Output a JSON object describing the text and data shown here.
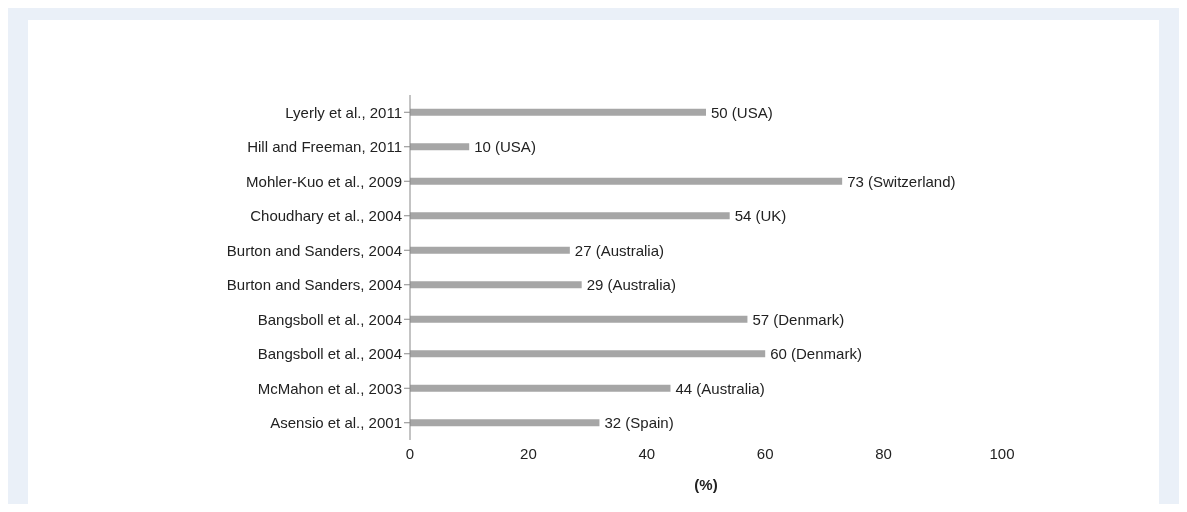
{
  "chart_data": {
    "type": "bar",
    "orientation": "horizontal",
    "xlabel": "(%)",
    "categories": [
      "Lyerly et al., 2011",
      "Hill and Freeman, 2011",
      "Mohler-Kuo et al., 2009",
      "Choudhary et al., 2004",
      "Burton and Sanders, 2004",
      "Burton and Sanders, 2004",
      "Bangsboll et al., 2004",
      "Bangsboll et al., 2004",
      "McMahon et al., 2003",
      "Asensio et al., 2001"
    ],
    "values": [
      50,
      10,
      73,
      54,
      27,
      29,
      57,
      60,
      44,
      32
    ],
    "value_labels": [
      "50 (USA)",
      "10 (USA)",
      "73 (Switzerland)",
      "54 (UK)",
      "27 (Australia)",
      "29 (Australia)",
      "57 (Denmark)",
      "60 (Denmark)",
      "44 (Australia)",
      "32 (Spain)"
    ],
    "color": "#a6a6a6",
    "xlim": [
      0,
      100
    ],
    "xticks": [
      0,
      20,
      40,
      60,
      80,
      100
    ],
    "grid": false,
    "legend": false
  }
}
